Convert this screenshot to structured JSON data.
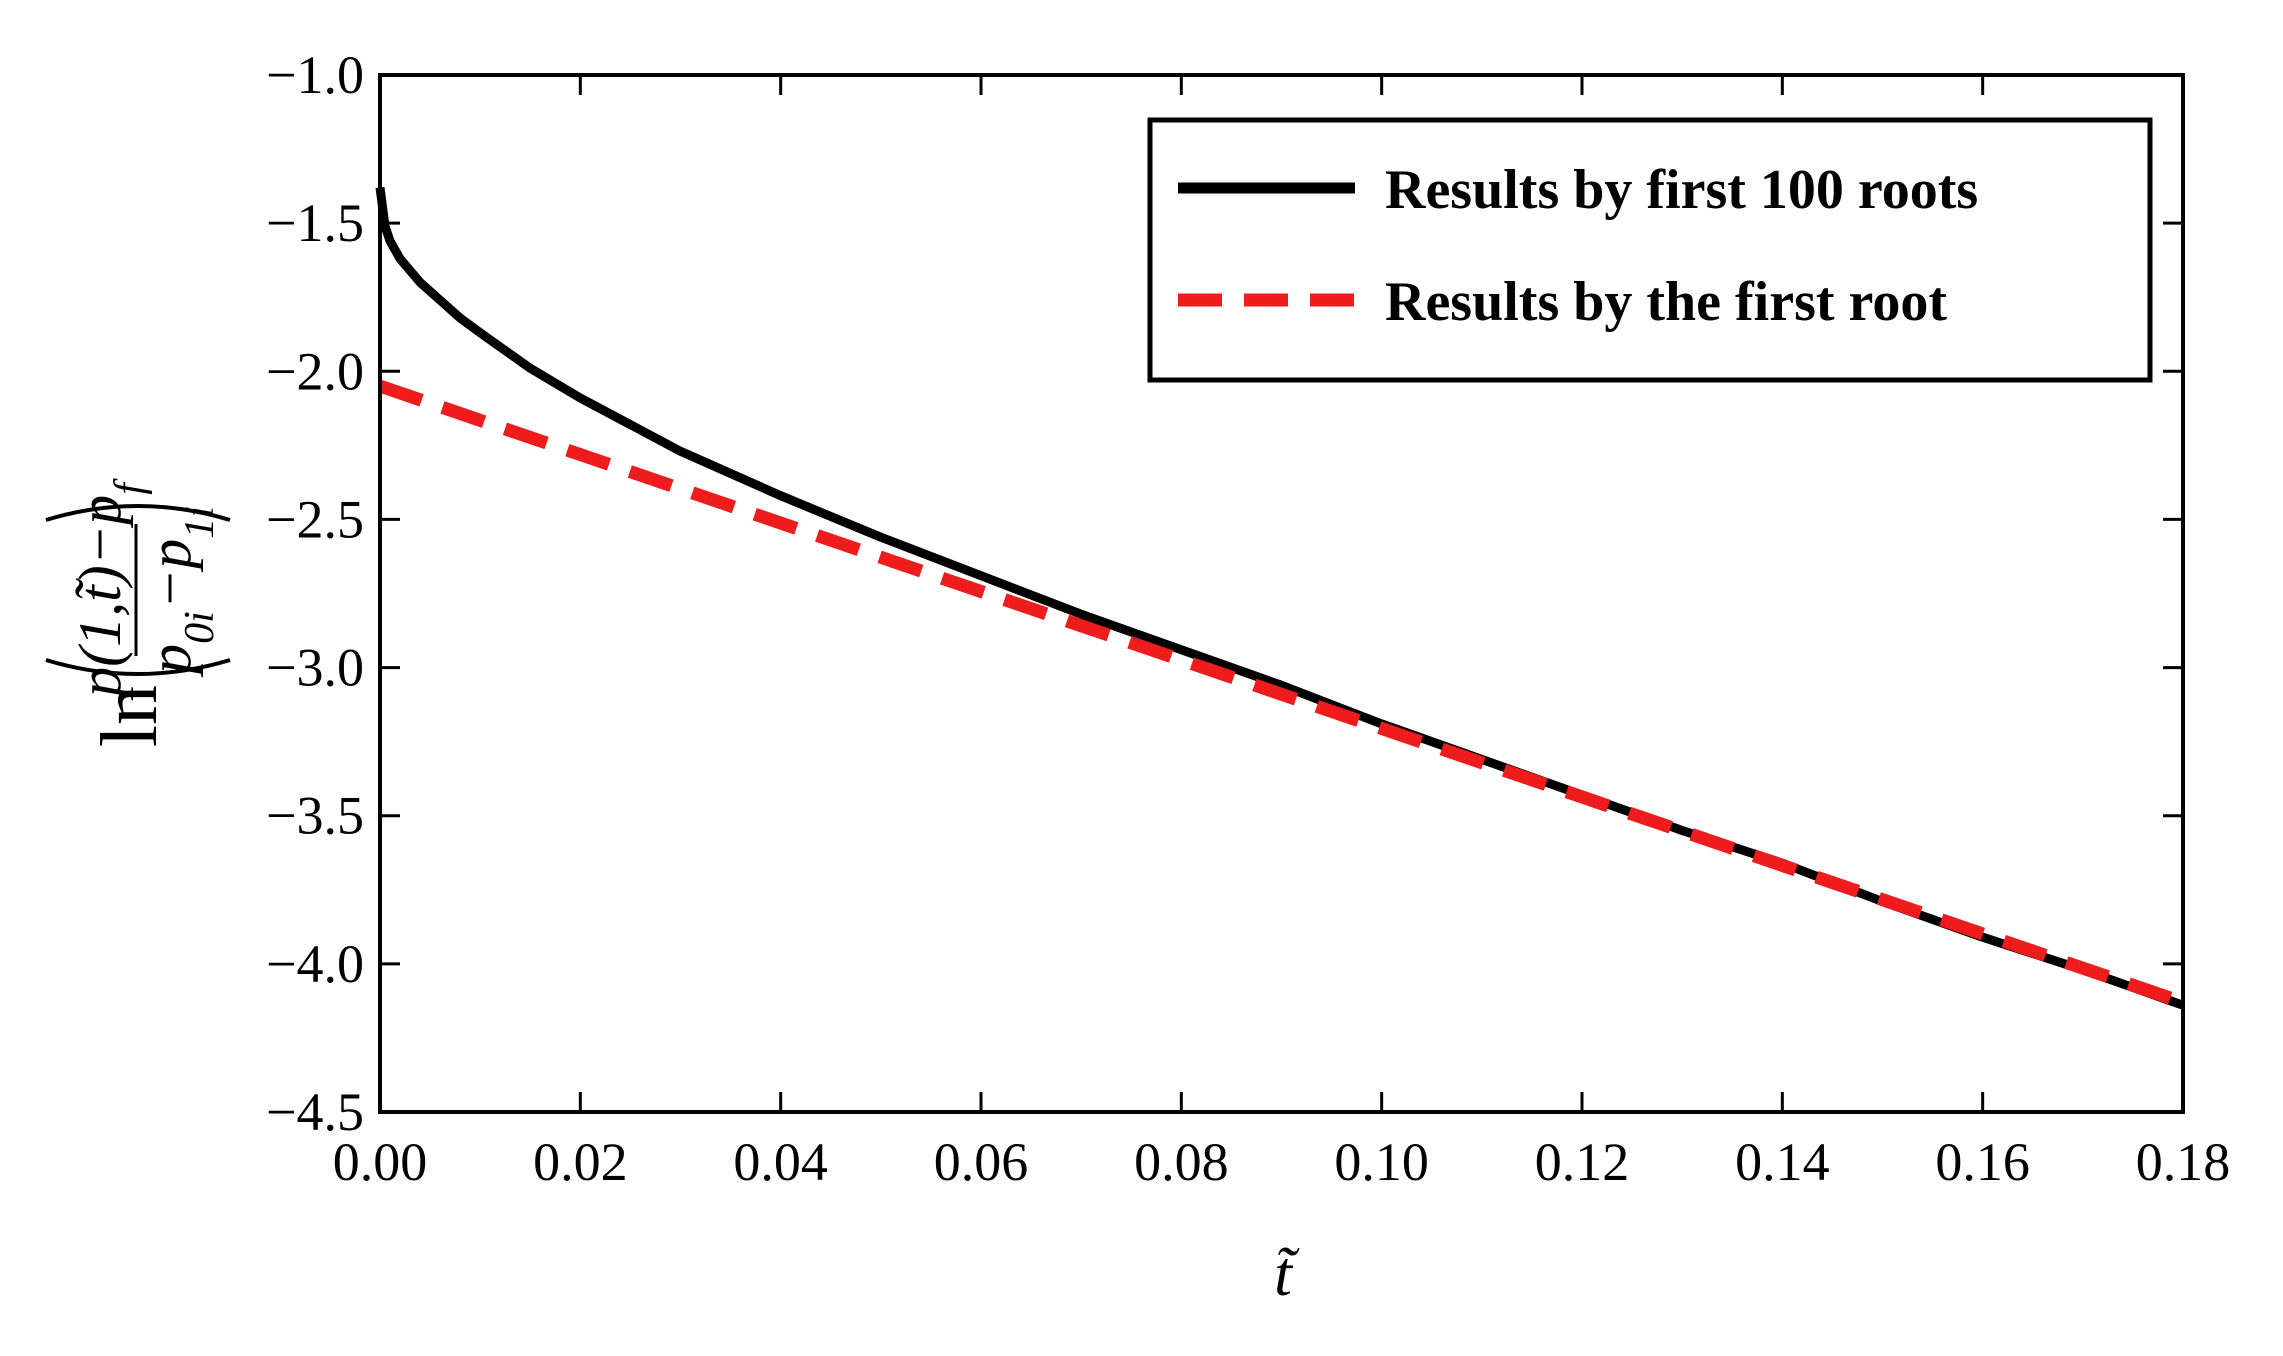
{
  "chart_data": {
    "type": "line",
    "title": "",
    "xlabel": "t̃",
    "ylabel": {
      "prefix": "ln",
      "numerator": "p(1,t̃)−p",
      "numerator_sub": "f",
      "denominator_a": "p",
      "denominator_a_sub": "0i",
      "denominator_b": "−p",
      "denominator_b_sub": "1i"
    },
    "xlim": [
      0.0,
      0.18
    ],
    "ylim": [
      -4.5,
      -1.0
    ],
    "xticks": [
      0.0,
      0.02,
      0.04,
      0.06,
      0.08,
      0.1,
      0.12,
      0.14,
      0.16,
      0.18
    ],
    "xtick_labels": [
      "0.00",
      "0.02",
      "0.04",
      "0.06",
      "0.08",
      "0.10",
      "0.12",
      "0.14",
      "0.16",
      "0.18"
    ],
    "yticks": [
      -1.0,
      -1.5,
      -2.0,
      -2.5,
      -3.0,
      -3.5,
      -4.0,
      -4.5
    ],
    "ytick_labels": [
      "−1.0",
      "−1.5",
      "−2.0",
      "−2.5",
      "−3.0",
      "−3.5",
      "−4.0",
      "−4.5"
    ],
    "grid": false,
    "legend_position": "top-right",
    "series": [
      {
        "name": "Results by first 100 roots",
        "color": "#000000",
        "style": "solid",
        "x": [
          0.0,
          0.0005,
          0.001,
          0.002,
          0.004,
          0.006,
          0.008,
          0.01,
          0.015,
          0.02,
          0.025,
          0.03,
          0.04,
          0.05,
          0.06,
          0.07,
          0.08,
          0.09,
          0.1,
          0.11,
          0.12,
          0.13,
          0.14,
          0.15,
          0.16,
          0.17,
          0.18
        ],
        "y": [
          -1.38,
          -1.51,
          -1.56,
          -1.62,
          -1.7,
          -1.76,
          -1.82,
          -1.87,
          -1.99,
          -2.09,
          -2.18,
          -2.27,
          -2.42,
          -2.56,
          -2.69,
          -2.82,
          -2.94,
          -3.06,
          -3.19,
          -3.31,
          -3.43,
          -3.55,
          -3.66,
          -3.79,
          -3.91,
          -4.02,
          -4.14
        ]
      },
      {
        "name": "Results by the first root",
        "color": "#ee1c1c",
        "style": "dashed",
        "x": [
          0.0,
          0.18
        ],
        "y": [
          -2.05,
          -4.13
        ]
      }
    ]
  }
}
